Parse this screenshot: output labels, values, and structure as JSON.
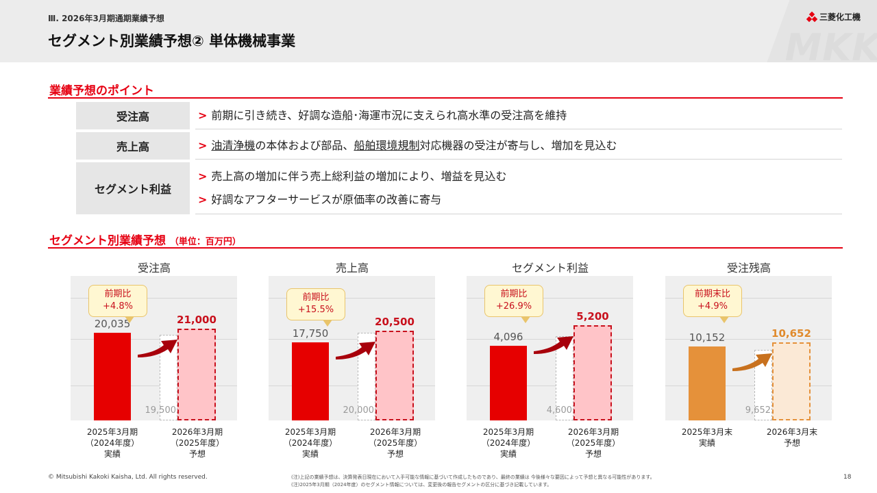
{
  "header": {
    "section": "Ⅲ. 2026年3月期通期業績予想",
    "title": "セグメント別業績予想② 単体機械事業",
    "logo_text": "三菱化工機",
    "watermark": "MKK"
  },
  "points": {
    "heading": "業績予想のポイント",
    "rows": [
      {
        "label": "受注高",
        "lines": [
          {
            "parts": [
              "前期に引き続き、好調な造船･海運市況に支えられ高水準の受注高を維持"
            ]
          }
        ]
      },
      {
        "label": "売上高",
        "lines": [
          {
            "parts": [
              "油清浄機",
              "の本体および部品、",
              "船舶環境規制",
              "対応機器の受注が寄与し、増加を見込む"
            ]
          }
        ]
      },
      {
        "label": "セグメント利益",
        "lines": [
          {
            "parts": [
              "売上高の増加に伴う売上総利益の増加により、増益を見込む"
            ]
          },
          {
            "parts": [
              "好調なアフターサービスが原価率の改善に寄与"
            ]
          }
        ]
      }
    ],
    "marker": ">"
  },
  "forecast": {
    "heading": "セグメント別業績予想",
    "unit": "（単位：百万円）"
  },
  "chart_data": [
    {
      "type": "bar",
      "title": "受注高",
      "categories": [
        [
          "2025年3月期",
          "（2024年度）",
          "実績"
        ],
        [
          "2026年3月期",
          "（2025年度）",
          "予想"
        ]
      ],
      "actual": 20035,
      "actual_label": "20,035",
      "forecast": 21000,
      "forecast_label": "21,000",
      "prior_plan": 19500,
      "prior_plan_label": "19,500",
      "change": [
        "前期比",
        "+4.8%"
      ],
      "ylim": [
        0,
        25000
      ],
      "color": "#e60000"
    },
    {
      "type": "bar",
      "title": "売上高",
      "categories": [
        [
          "2025年3月期",
          "（2024年度）",
          "実績"
        ],
        [
          "2026年3月期",
          "（2025年度）",
          "予想"
        ]
      ],
      "actual": 17750,
      "actual_label": "17,750",
      "forecast": 20500,
      "forecast_label": "20,500",
      "prior_plan": 20000,
      "prior_plan_label": "20,000",
      "change": [
        "前期比",
        "+15.5%"
      ],
      "ylim": [
        0,
        25000
      ],
      "color": "#e60000"
    },
    {
      "type": "bar",
      "title": "セグメント利益",
      "categories": [
        [
          "2025年3月期",
          "（2024年度）",
          "実績"
        ],
        [
          "2026年3月期",
          "（2025年度）",
          "予想"
        ]
      ],
      "actual": 4096,
      "actual_label": "4,096",
      "forecast": 5200,
      "forecast_label": "5,200",
      "prior_plan": 4600,
      "prior_plan_label": "4,600",
      "change": [
        "前期比",
        "+26.9%"
      ],
      "ylim": [
        0,
        6000
      ],
      "color": "#e60000"
    },
    {
      "type": "bar",
      "title": "受注残高",
      "categories": [
        [
          "2025年3月末",
          "実績"
        ],
        [
          "2026年3月末",
          "予想"
        ]
      ],
      "actual": 10152,
      "actual_label": "10,152",
      "forecast": 10652,
      "forecast_label": "10,652",
      "prior_plan": 9652,
      "prior_plan_label": "9,652",
      "change": [
        "前期末比",
        "+4.9%"
      ],
      "ylim": [
        0,
        15000
      ],
      "color": "#e5913a"
    }
  ],
  "footer": {
    "copyright": "© Mitsubishi Kakoki Kaisha, Ltd. All rights reserved.",
    "notes": [
      "(注)上記の業績予想は、決算発表日現在において入手可能な情報に基づいて作成したものであり、最終の業績は 今後様々な要因によって予想と異なる可能性があります。",
      "(注)2025年3月期（2024年度）のセグメント情報については、変更後の報告セグメントの区分に基づき記載しています。"
    ],
    "page": "18"
  }
}
